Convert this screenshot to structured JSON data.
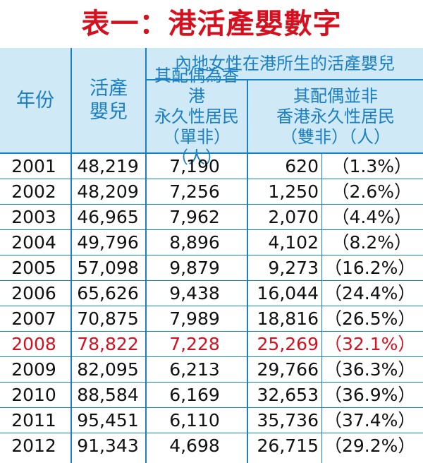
{
  "title": {
    "prefix": "表一：",
    "text": "港活產嬰數字"
  },
  "headers": {
    "year": "年份",
    "births_line1": "活產",
    "births_line2": "嬰兒",
    "mainland_group": "內地女性在港所生的活產嬰兒",
    "single_line1": "其配偶為香港",
    "single_line2": "永久性居民",
    "single_line3": "（單非）（人）",
    "double_line1": "其配偶並非",
    "double_line2": "香港永久性居民",
    "double_line3": "（雙非）（人）"
  },
  "colors": {
    "title": "#d6101e",
    "header_bg": "#cfe9f7",
    "header_text": "#1b7fc1",
    "highlight": "#d6101e"
  },
  "rows": [
    {
      "year": "2001",
      "births": "48,219",
      "single": "7,190",
      "double": "620",
      "double_pct": "（1.3%）"
    },
    {
      "year": "2002",
      "births": "48,209",
      "single": "7,256",
      "double": "1,250",
      "double_pct": "（2.6%）"
    },
    {
      "year": "2003",
      "births": "46,965",
      "single": "7,962",
      "double": "2,070",
      "double_pct": "（4.4%）"
    },
    {
      "year": "2004",
      "births": "49,796",
      "single": "8,896",
      "double": "4,102",
      "double_pct": "（8.2%）"
    },
    {
      "year": "2005",
      "births": "57,098",
      "single": "9,879",
      "double": "9,273",
      "double_pct": "（16.2%）"
    },
    {
      "year": "2006",
      "births": "65,626",
      "single": "9,438",
      "double": "16,044",
      "double_pct": "（24.4%）"
    },
    {
      "year": "2007",
      "births": "70,875",
      "single": "7,989",
      "double": "18,816",
      "double_pct": "（26.5%）"
    },
    {
      "year": "2008",
      "births": "78,822",
      "single": "7,228",
      "double": "25,269",
      "double_pct": "（32.1%）",
      "highlight": true
    },
    {
      "year": "2009",
      "births": "82,095",
      "single": "6,213",
      "double": "29,766",
      "double_pct": "（36.3%）"
    },
    {
      "year": "2010",
      "births": "88,584",
      "single": "6,169",
      "double": "32,653",
      "double_pct": "（36.9%）"
    },
    {
      "year": "2011",
      "births": "95,451",
      "single": "6,110",
      "double": "35,736",
      "double_pct": "（37.4%）"
    },
    {
      "year": "2012",
      "births": "91,343",
      "single": "4,698",
      "double": "26,715",
      "double_pct": "（29.2%）"
    }
  ]
}
